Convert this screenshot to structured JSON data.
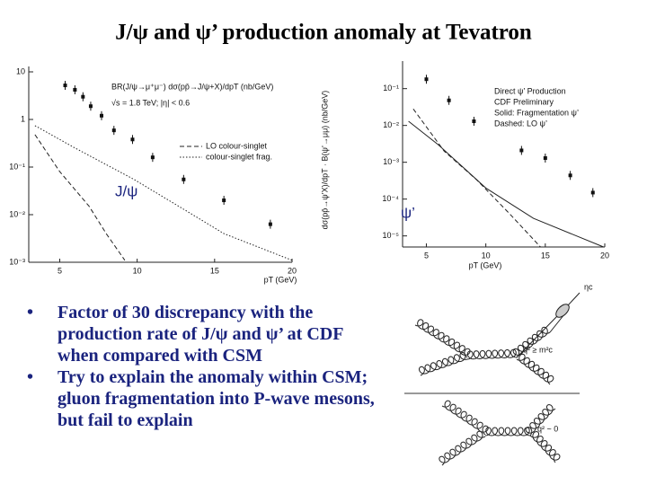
{
  "title": "J/ψ and ψ’ production anomaly at Tevatron",
  "left_plot": {
    "y_log": true,
    "xlim": [
      3,
      20
    ],
    "ylim": [
      0.001,
      10
    ],
    "xticks": [
      5,
      10,
      15,
      20
    ],
    "yticks": [
      {
        "value": 10,
        "label": "10"
      },
      {
        "value": 1,
        "label": "1"
      },
      {
        "value": 0.1,
        "label": "10⁻¹"
      },
      {
        "value": 0.01,
        "label": "10⁻²"
      },
      {
        "value": 0.001,
        "label": "10⁻³"
      }
    ],
    "x_label": "pT (GeV)",
    "y_label": "BR(J/ψ→μ⁺μ⁻) dσ(pp̄→J/ψ+X)/dpT (nb/GeV)",
    "note": "√s = 1.8 TeV; |η| < 0.6",
    "tag": "J/ψ",
    "points": {
      "x": [
        5.35,
        5.98,
        6.5,
        7.0,
        7.7,
        8.5,
        9.7,
        11,
        13,
        15.6,
        18.6
      ],
      "y": [
        5.2,
        4.2,
        3.0,
        1.9,
        1.2,
        0.59,
        0.38,
        0.16,
        0.055,
        0.02,
        0.0063
      ]
    },
    "curves": [
      {
        "name": "LO colour-singlet",
        "style": "dashed",
        "x": [
          3.4,
          5,
          6.9,
          8,
          9.2
        ],
        "y": [
          0.48,
          0.08,
          0.015,
          0.004,
          0.0011
        ]
      },
      {
        "name": "colour-singlet frag.",
        "style": "dotted",
        "x": [
          3.4,
          6,
          9.8,
          13,
          15.6,
          20
        ],
        "y": [
          0.74,
          0.25,
          0.055,
          0.013,
          0.004,
          0.0011
        ]
      }
    ]
  },
  "right_plot": {
    "y_log": true,
    "xlim": [
      3,
      20
    ],
    "ylim": [
      5e-06,
      0.4
    ],
    "xticks": [
      5,
      10,
      15,
      20
    ],
    "yticks": [
      {
        "value": 0.1,
        "label": "10⁻¹"
      },
      {
        "value": 0.01,
        "label": "10⁻²"
      },
      {
        "value": 0.001,
        "label": "10⁻³"
      },
      {
        "value": 0.0001,
        "label": "10⁻⁴"
      },
      {
        "value": 1e-05,
        "label": "10⁻⁵"
      }
    ],
    "x_label": "pT (GeV)",
    "y_label": "dσ(pp̄→ψ’X)/dpT · B(ψ’→μμ) (nb/GeV)",
    "legend_header": [
      "Direct ψ’ Production",
      "CDF Preliminary"
    ],
    "tag": "ψ’",
    "points": {
      "x": [
        5,
        6.9,
        9.0,
        13,
        15,
        17.1,
        19
      ],
      "y": [
        0.18,
        0.048,
        0.013,
        0.0021,
        0.0013,
        0.00044,
        0.00015
      ]
    },
    "curves": [
      {
        "name": "Solid: Fragmentation ψ’",
        "style": "solid",
        "x": [
          3.5,
          6,
          10,
          14,
          19.9
        ],
        "y": [
          0.013,
          0.003,
          0.0002,
          3e-05,
          5e-06
        ]
      },
      {
        "name": "Dashed: LO ψ’",
        "style": "dashed",
        "x": [
          3.9,
          6.5,
          9.2,
          12,
          14.6
        ],
        "y": [
          0.028,
          0.002,
          0.00034,
          4e-05,
          5e-06
        ]
      }
    ]
  },
  "bullets": [
    "Factor of 30 discrepancy with the production rate of J/ψ and ψ’ at CDF when compared with CSM",
    "Try to explain the anomaly within CSM; gluon fragmentation into P-wave mesons, but fail to explain"
  ],
  "diagram": {
    "meson": "ηc",
    "top_label": "q² ≥ m²c",
    "bottom_label": "q² ~ 0"
  }
}
